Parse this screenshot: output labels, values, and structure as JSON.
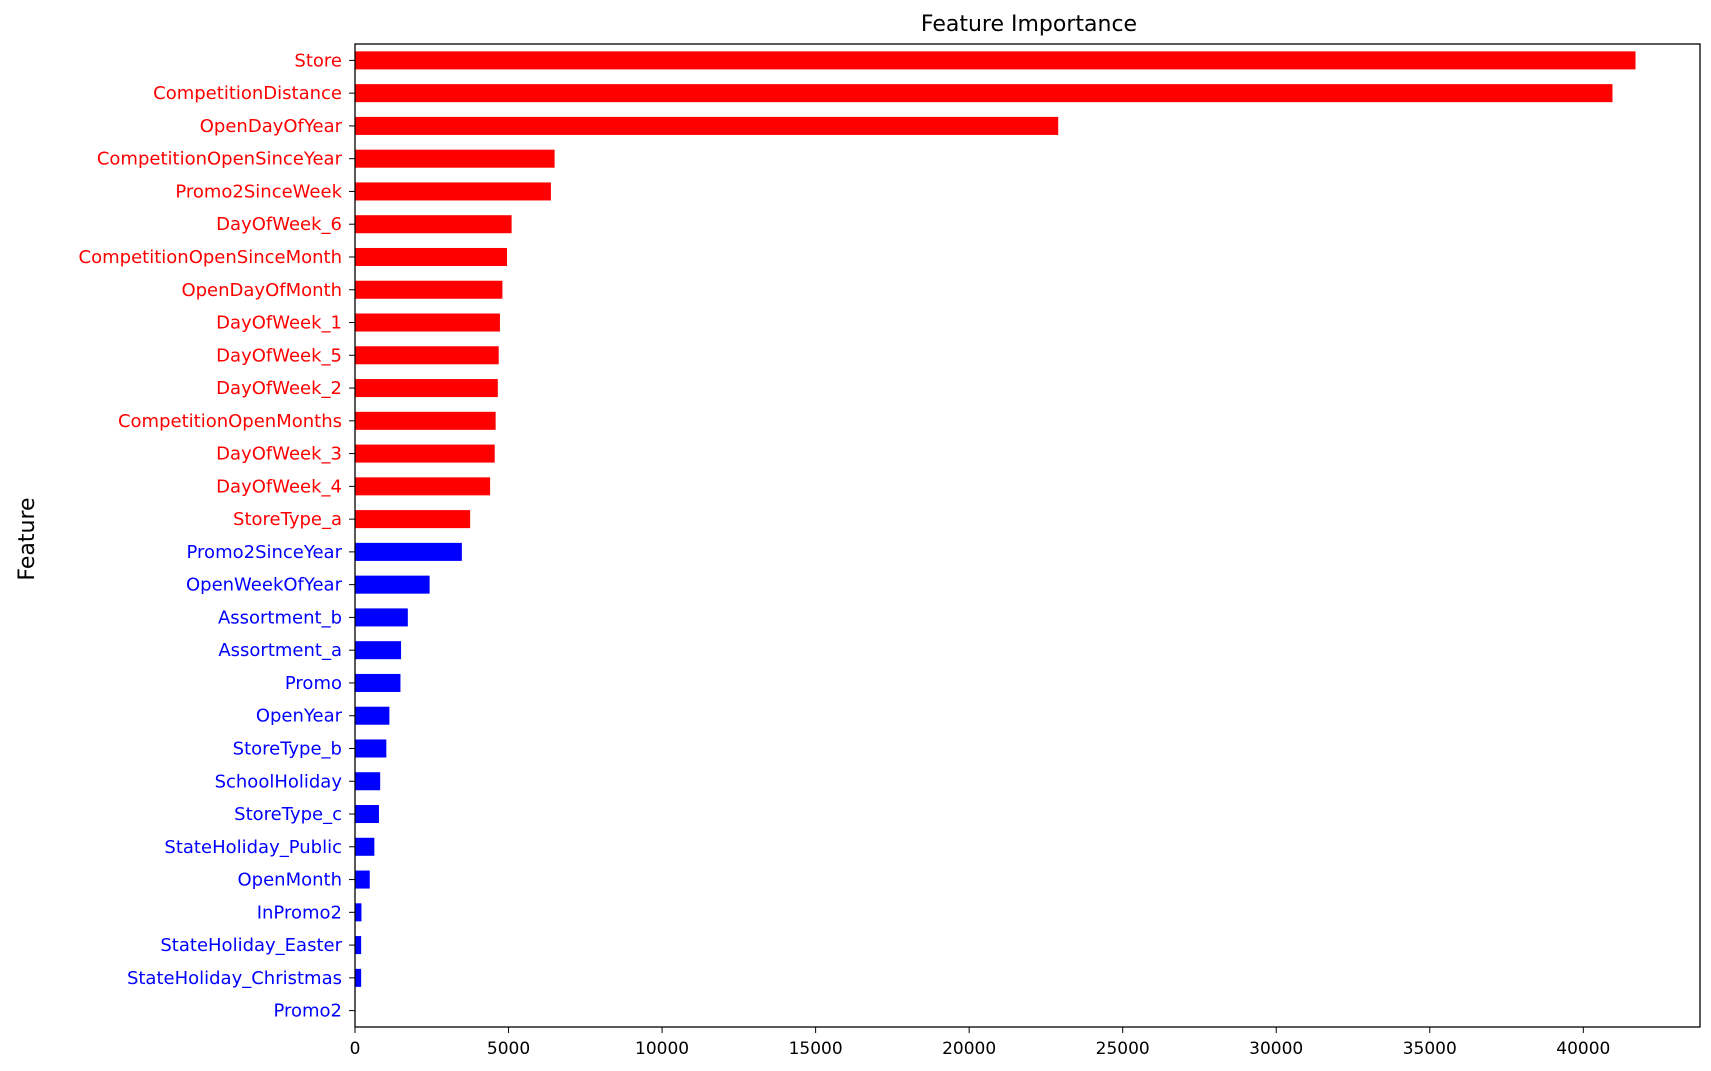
{
  "chart_data": {
    "type": "bar",
    "orientation": "horizontal",
    "title": "Feature Importance",
    "xlabel": "",
    "ylabel": "Feature",
    "xlim": [
      0,
      43800
    ],
    "xticks": [
      0,
      5000,
      10000,
      15000,
      20000,
      25000,
      30000,
      35000,
      40000
    ],
    "grid": false,
    "legend": "none",
    "colors": {
      "high": "#ff0000",
      "low": "#0000ff"
    },
    "categories": [
      "Store",
      "CompetitionDistance",
      "OpenDayOfYear",
      "CompetitionOpenSinceYear",
      "Promo2SinceWeek",
      "DayOfWeek_6",
      "CompetitionOpenSinceMonth",
      "OpenDayOfMonth",
      "DayOfWeek_1",
      "DayOfWeek_5",
      "DayOfWeek_2",
      "CompetitionOpenMonths",
      "DayOfWeek_3",
      "DayOfWeek_4",
      "StoreType_a",
      "Promo2SinceYear",
      "OpenWeekOfYear",
      "Assortment_b",
      "Assortment_a",
      "Promo",
      "OpenYear",
      "StoreType_b",
      "SchoolHoliday",
      "StoreType_c",
      "StateHoliday_Public",
      "OpenMonth",
      "InPromo2",
      "StateHoliday_Easter",
      "StateHoliday_Christmas",
      "Promo2"
    ],
    "values": [
      41700,
      40950,
      22900,
      6500,
      6380,
      5100,
      4950,
      4800,
      4720,
      4680,
      4650,
      4580,
      4550,
      4400,
      3750,
      3480,
      2430,
      1720,
      1500,
      1480,
      1120,
      1020,
      820,
      780,
      630,
      480,
      210,
      200,
      200,
      10
    ],
    "group": [
      "high",
      "high",
      "high",
      "high",
      "high",
      "high",
      "high",
      "high",
      "high",
      "high",
      "high",
      "high",
      "high",
      "high",
      "high",
      "low",
      "low",
      "low",
      "low",
      "low",
      "low",
      "low",
      "low",
      "low",
      "low",
      "low",
      "low",
      "low",
      "low",
      "low"
    ]
  }
}
